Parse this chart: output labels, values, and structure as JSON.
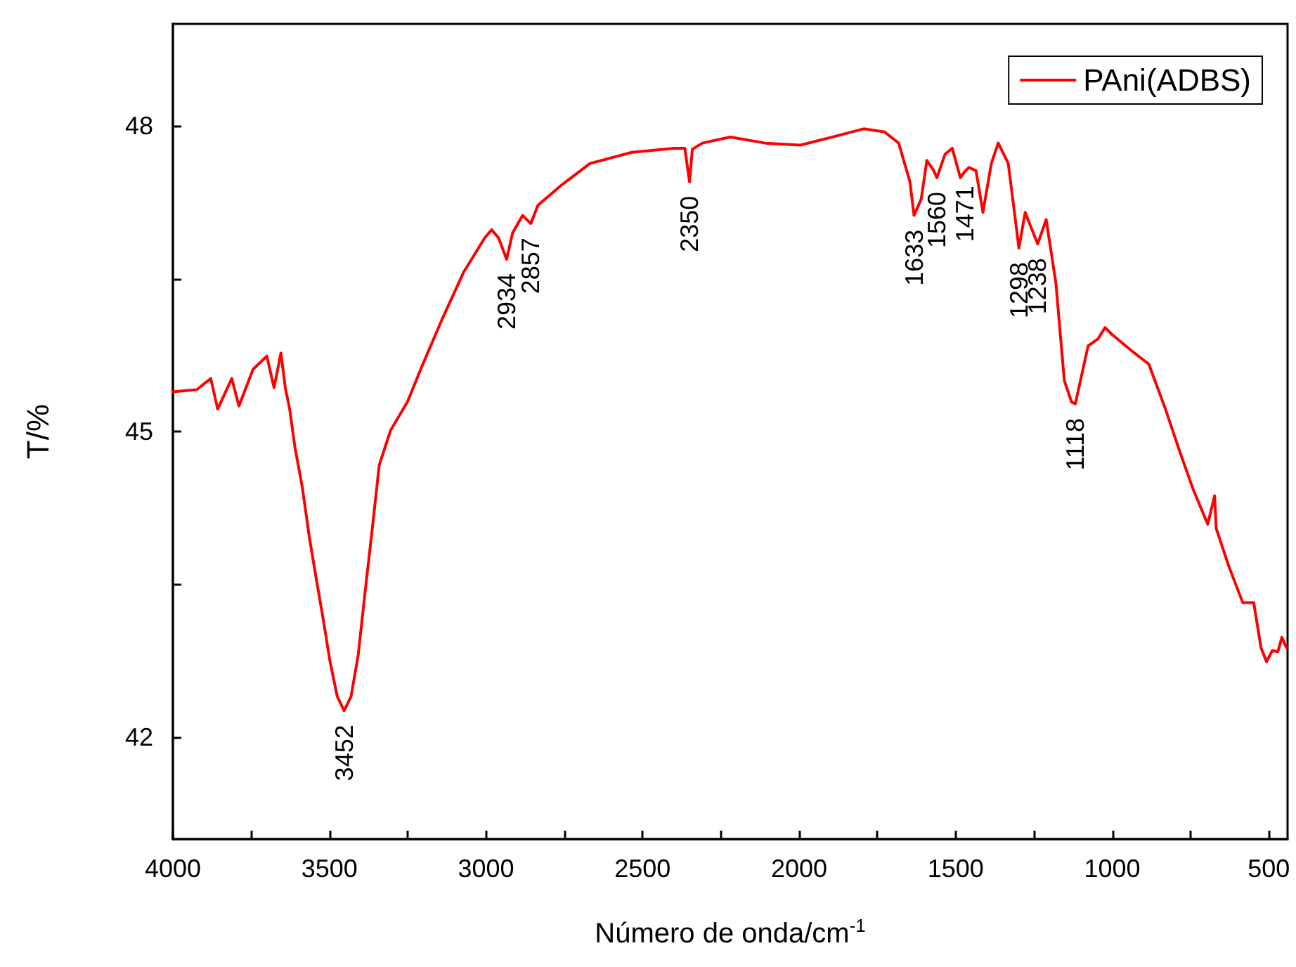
{
  "chart_data": {
    "type": "line",
    "xlabel": "Número de onda/cm$^{-1}$",
    "ylabel": "T/%",
    "xlim": [
      4000,
      440
    ],
    "ylim": [
      41,
      49
    ],
    "xticks": [
      4000,
      {
        "value": 3750,
        "label": null
      },
      3500,
      {
        "value": 3250,
        "label": null
      },
      3000,
      {
        "value": 2750,
        "label": null
      },
      2500,
      {
        "value": 2250,
        "label": null
      },
      2000,
      {
        "value": 1750,
        "label": null
      },
      1500,
      {
        "value": 1250,
        "label": null
      },
      1000,
      {
        "value": 750,
        "label": null
      },
      500
    ],
    "yticks": [
      42,
      {
        "value": 43.5,
        "label": null
      },
      45,
      {
        "value": 46.5,
        "label": null
      },
      48
    ],
    "grid": false,
    "legend": "top right",
    "marker": "none",
    "line_style": "solid",
    "x": [
      4000,
      3924,
      3879,
      3857,
      3812,
      3789,
      3744,
      3700,
      3677,
      3655,
      3641,
      3627,
      3610,
      3587,
      3565,
      3543,
      3520,
      3498,
      3475,
      3453,
      3431,
      3408,
      3386,
      3363,
      3341,
      3305,
      3251,
      3206,
      3139,
      3072,
      3004,
      2982,
      2960,
      2934,
      2915,
      2883,
      2857,
      2834,
      2758,
      2668,
      2534,
      2399,
      2365,
      2350,
      2341,
      2309,
      2220,
      2108,
      1996,
      1906,
      1794,
      1727,
      1682,
      1646,
      1633,
      1610,
      1592,
      1570,
      1560,
      1534,
      1511,
      1485,
      1471,
      1458,
      1435,
      1413,
      1386,
      1364,
      1332,
      1298,
      1278,
      1238,
      1211,
      1180,
      1153,
      1130,
      1118,
      1077,
      1045,
      1023,
      1000,
      941,
      883,
      830,
      785,
      740,
      695,
      673,
      668,
      628,
      583,
      548,
      525,
      507,
      489,
      471,
      458,
      444
    ],
    "series": [
      {
        "name": "PAni(ADBS)",
        "color": "#ff0000",
        "values": [
          45.39,
          45.41,
          45.52,
          45.22,
          45.52,
          45.25,
          45.61,
          45.74,
          45.43,
          45.77,
          45.43,
          45.22,
          44.84,
          44.46,
          43.98,
          43.57,
          43.16,
          42.74,
          42.4,
          42.26,
          42.4,
          42.81,
          43.43,
          44.05,
          44.67,
          45.01,
          45.29,
          45.63,
          46.11,
          46.56,
          46.9,
          46.98,
          46.9,
          46.69,
          46.95,
          47.12,
          47.04,
          47.22,
          47.42,
          47.63,
          47.74,
          47.78,
          47.78,
          47.45,
          47.77,
          47.83,
          47.89,
          47.83,
          47.81,
          47.88,
          47.97,
          47.94,
          47.83,
          47.45,
          47.12,
          47.28,
          47.66,
          47.56,
          47.49,
          47.72,
          47.78,
          47.49,
          47.55,
          47.59,
          47.56,
          47.15,
          47.63,
          47.83,
          47.63,
          46.8,
          47.15,
          46.84,
          47.08,
          46.46,
          45.5,
          45.29,
          45.27,
          45.84,
          45.91,
          46.02,
          45.95,
          45.8,
          45.66,
          45.22,
          44.81,
          44.42,
          44.09,
          44.37,
          44.05,
          43.68,
          43.32,
          43.32,
          42.88,
          42.74,
          42.85,
          42.84,
          42.98,
          42.88
        ]
      }
    ],
    "annotations": [
      {
        "text": "3452",
        "x": 3452,
        "y": 42.26
      },
      {
        "text": "2934",
        "x": 2934,
        "y": 46.69
      },
      {
        "text": "2857",
        "x": 2857,
        "y": 47.04
      },
      {
        "text": "2350",
        "x": 2350,
        "y": 47.45
      },
      {
        "text": "1633",
        "x": 1633,
        "y": 47.12
      },
      {
        "text": "1560",
        "x": 1560,
        "y": 47.49
      },
      {
        "text": "1471",
        "x": 1471,
        "y": 47.55
      },
      {
        "text": "1298",
        "x": 1298,
        "y": 46.8
      },
      {
        "text": "1238",
        "x": 1238,
        "y": 46.84
      },
      {
        "text": "1118",
        "x": 1118,
        "y": 45.27
      }
    ]
  }
}
